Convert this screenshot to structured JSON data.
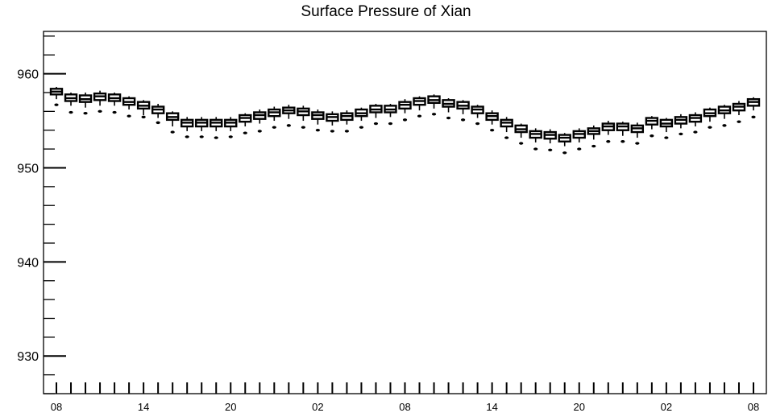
{
  "chart_data": {
    "type": "boxplot",
    "title": "Surface Pressure of Xian",
    "xlabel": "",
    "ylabel": "",
    "ylim": [
      926,
      964.5
    ],
    "yticks": [
      930,
      940,
      950,
      960
    ],
    "ytick_labels": [
      "930",
      "940",
      "950",
      "960"
    ],
    "xtick_labels": [
      "08",
      "14",
      "20",
      "02",
      "08",
      "14",
      "20",
      "02",
      "08"
    ],
    "xtick_every": 6,
    "grid": false,
    "series": [
      {
        "boxes": [
          {
            "x": 0,
            "q1": 957.8,
            "median": 958.1,
            "q3": 958.4,
            "whisker_low": 957.3,
            "whisker_high": 958.6,
            "outlier": 956.7
          },
          {
            "x": 1,
            "q1": 957.1,
            "median": 957.4,
            "q3": 957.8,
            "whisker_low": 956.6,
            "whisker_high": 958.0,
            "outlier": 955.9
          },
          {
            "x": 2,
            "q1": 957.0,
            "median": 957.3,
            "q3": 957.7,
            "whisker_low": 956.4,
            "whisker_high": 958.0,
            "outlier": 955.8
          },
          {
            "x": 3,
            "q1": 957.2,
            "median": 957.6,
            "q3": 957.9,
            "whisker_low": 956.6,
            "whisker_high": 958.2,
            "outlier": 956.0
          },
          {
            "x": 4,
            "q1": 957.1,
            "median": 957.4,
            "q3": 957.8,
            "whisker_low": 956.6,
            "whisker_high": 958.0,
            "outlier": 955.9
          },
          {
            "x": 5,
            "q1": 956.7,
            "median": 957.0,
            "q3": 957.4,
            "whisker_low": 956.2,
            "whisker_high": 957.6,
            "outlier": 955.5
          },
          {
            "x": 6,
            "q1": 956.3,
            "median": 956.6,
            "q3": 957.0,
            "whisker_low": 955.6,
            "whisker_high": 957.2,
            "outlier": 955.4
          },
          {
            "x": 7,
            "q1": 955.8,
            "median": 956.2,
            "q3": 956.5,
            "whisker_low": 955.3,
            "whisker_high": 956.8,
            "outlier": 954.8
          },
          {
            "x": 8,
            "q1": 955.1,
            "median": 955.4,
            "q3": 955.8,
            "whisker_low": 954.4,
            "whisker_high": 956.0,
            "outlier": 953.8
          },
          {
            "x": 9,
            "q1": 954.4,
            "median": 954.8,
            "q3": 955.1,
            "whisker_low": 953.9,
            "whisker_high": 955.4,
            "outlier": 953.3
          },
          {
            "x": 10,
            "q1": 954.4,
            "median": 954.8,
            "q3": 955.1,
            "whisker_low": 953.9,
            "whisker_high": 955.4,
            "outlier": 953.3
          },
          {
            "x": 11,
            "q1": 954.4,
            "median": 954.8,
            "q3": 955.1,
            "whisker_low": 953.9,
            "whisker_high": 955.4,
            "outlier": 953.2
          },
          {
            "x": 12,
            "q1": 954.4,
            "median": 954.8,
            "q3": 955.1,
            "whisker_low": 953.9,
            "whisker_high": 955.4,
            "outlier": 953.3
          },
          {
            "x": 13,
            "q1": 954.9,
            "median": 955.3,
            "q3": 955.6,
            "whisker_low": 954.4,
            "whisker_high": 955.8,
            "outlier": 953.7
          },
          {
            "x": 14,
            "q1": 955.2,
            "median": 955.6,
            "q3": 955.9,
            "whisker_low": 954.7,
            "whisker_high": 956.2,
            "outlier": 953.9
          },
          {
            "x": 15,
            "q1": 955.5,
            "median": 955.9,
            "q3": 956.2,
            "whisker_low": 955.0,
            "whisker_high": 956.5,
            "outlier": 954.3
          },
          {
            "x": 16,
            "q1": 955.8,
            "median": 956.1,
            "q3": 956.4,
            "whisker_low": 955.2,
            "whisker_high": 956.7,
            "outlier": 954.5
          },
          {
            "x": 17,
            "q1": 955.6,
            "median": 956.0,
            "q3": 956.3,
            "whisker_low": 955.0,
            "whisker_high": 956.6,
            "outlier": 954.3
          },
          {
            "x": 18,
            "q1": 955.2,
            "median": 955.6,
            "q3": 955.9,
            "whisker_low": 954.6,
            "whisker_high": 956.2,
            "outlier": 954.0
          },
          {
            "x": 19,
            "q1": 955.0,
            "median": 955.4,
            "q3": 955.7,
            "whisker_low": 954.5,
            "whisker_high": 956.0,
            "outlier": 953.9
          },
          {
            "x": 20,
            "q1": 955.1,
            "median": 955.5,
            "q3": 955.8,
            "whisker_low": 954.6,
            "whisker_high": 956.1,
            "outlier": 953.9
          },
          {
            "x": 21,
            "q1": 955.5,
            "median": 955.8,
            "q3": 956.2,
            "whisker_low": 955.0,
            "whisker_high": 956.4,
            "outlier": 954.3
          },
          {
            "x": 22,
            "q1": 955.9,
            "median": 956.2,
            "q3": 956.6,
            "whisker_low": 955.3,
            "whisker_high": 956.8,
            "outlier": 954.7
          },
          {
            "x": 23,
            "q1": 955.9,
            "median": 956.2,
            "q3": 956.6,
            "whisker_low": 955.4,
            "whisker_high": 956.8,
            "outlier": 954.7
          },
          {
            "x": 24,
            "q1": 956.3,
            "median": 956.7,
            "q3": 957.0,
            "whisker_low": 955.8,
            "whisker_high": 957.3,
            "outlier": 955.1
          },
          {
            "x": 25,
            "q1": 956.7,
            "median": 957.1,
            "q3": 957.4,
            "whisker_low": 956.1,
            "whisker_high": 957.6,
            "outlier": 955.5
          },
          {
            "x": 26,
            "q1": 956.9,
            "median": 957.2,
            "q3": 957.6,
            "whisker_low": 956.3,
            "whisker_high": 957.8,
            "outlier": 955.7
          },
          {
            "x": 27,
            "q1": 956.5,
            "median": 956.8,
            "q3": 957.2,
            "whisker_low": 955.9,
            "whisker_high": 957.4,
            "outlier": 955.3
          },
          {
            "x": 28,
            "q1": 956.3,
            "median": 956.6,
            "q3": 957.0,
            "whisker_low": 955.7,
            "whisker_high": 957.2,
            "outlier": 955.1
          },
          {
            "x": 29,
            "q1": 955.8,
            "median": 956.2,
            "q3": 956.5,
            "whisker_low": 955.3,
            "whisker_high": 956.7,
            "outlier": 954.7
          },
          {
            "x": 30,
            "q1": 955.1,
            "median": 955.5,
            "q3": 955.8,
            "whisker_low": 954.6,
            "whisker_high": 956.1,
            "outlier": 954.0
          },
          {
            "x": 31,
            "q1": 954.4,
            "median": 954.8,
            "q3": 955.1,
            "whisker_low": 953.8,
            "whisker_high": 955.4,
            "outlier": 953.2
          },
          {
            "x": 32,
            "q1": 953.8,
            "median": 954.1,
            "q3": 954.5,
            "whisker_low": 953.2,
            "whisker_high": 954.7,
            "outlier": 952.6
          },
          {
            "x": 33,
            "q1": 953.2,
            "median": 953.6,
            "q3": 953.9,
            "whisker_low": 952.7,
            "whisker_high": 954.2,
            "outlier": 952.0
          },
          {
            "x": 34,
            "q1": 953.1,
            "median": 953.5,
            "q3": 953.8,
            "whisker_low": 952.6,
            "whisker_high": 954.1,
            "outlier": 951.9
          },
          {
            "x": 35,
            "q1": 952.8,
            "median": 953.2,
            "q3": 953.5,
            "whisker_low": 952.3,
            "whisker_high": 953.7,
            "outlier": 951.6
          },
          {
            "x": 36,
            "q1": 953.2,
            "median": 953.6,
            "q3": 953.9,
            "whisker_low": 952.7,
            "whisker_high": 954.2,
            "outlier": 952.0
          },
          {
            "x": 37,
            "q1": 953.6,
            "median": 953.9,
            "q3": 954.2,
            "whisker_low": 953.0,
            "whisker_high": 954.5,
            "outlier": 952.3
          },
          {
            "x": 38,
            "q1": 954.0,
            "median": 954.4,
            "q3": 954.7,
            "whisker_low": 953.5,
            "whisker_high": 955.0,
            "outlier": 952.8
          },
          {
            "x": 39,
            "q1": 954.0,
            "median": 954.4,
            "q3": 954.7,
            "whisker_low": 953.4,
            "whisker_high": 954.9,
            "outlier": 952.8
          },
          {
            "x": 40,
            "q1": 953.8,
            "median": 954.2,
            "q3": 954.5,
            "whisker_low": 953.2,
            "whisker_high": 954.8,
            "outlier": 952.6
          },
          {
            "x": 41,
            "q1": 954.6,
            "median": 955.0,
            "q3": 955.3,
            "whisker_low": 954.1,
            "whisker_high": 955.5,
            "outlier": 953.4
          },
          {
            "x": 42,
            "q1": 954.4,
            "median": 954.7,
            "q3": 955.1,
            "whisker_low": 953.8,
            "whisker_high": 955.3,
            "outlier": 953.2
          },
          {
            "x": 43,
            "q1": 954.7,
            "median": 955.1,
            "q3": 955.4,
            "whisker_low": 954.2,
            "whisker_high": 955.7,
            "outlier": 953.6
          },
          {
            "x": 44,
            "q1": 954.9,
            "median": 955.3,
            "q3": 955.6,
            "whisker_low": 954.4,
            "whisker_high": 955.9,
            "outlier": 953.8
          },
          {
            "x": 45,
            "q1": 955.5,
            "median": 955.8,
            "q3": 956.2,
            "whisker_low": 954.9,
            "whisker_high": 956.4,
            "outlier": 954.3
          },
          {
            "x": 46,
            "q1": 955.8,
            "median": 956.1,
            "q3": 956.5,
            "whisker_low": 955.2,
            "whisker_high": 956.7,
            "outlier": 954.5
          },
          {
            "x": 47,
            "q1": 956.1,
            "median": 956.5,
            "q3": 956.8,
            "whisker_low": 955.6,
            "whisker_high": 957.1,
            "outlier": 954.9
          },
          {
            "x": 48,
            "q1": 956.6,
            "median": 957.0,
            "q3": 957.3,
            "whisker_low": 956.1,
            "whisker_high": 957.5,
            "outlier": 955.4
          }
        ]
      }
    ],
    "colors": {
      "box": "#000000",
      "axis": "#000000",
      "background": "#ffffff"
    }
  }
}
